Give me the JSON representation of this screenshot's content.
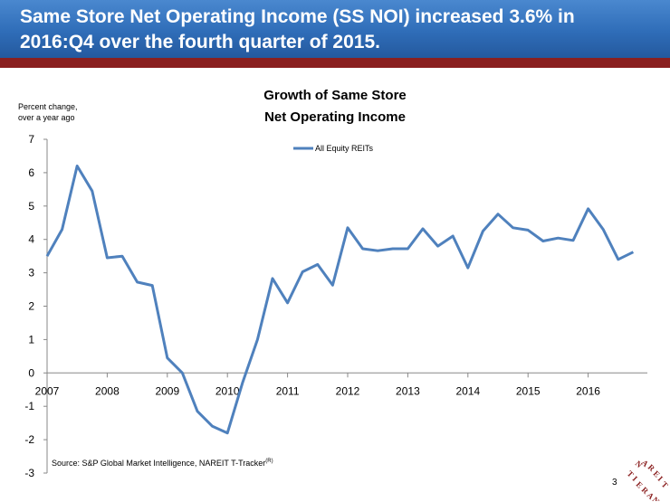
{
  "slide": {
    "title_line1": "Same Store Net Operating Income (SS NOI) increased 3.6% in",
    "title_line2": "2016:Q4 over the fourth quarter of 2015.",
    "source": "Source: S&P Global Market Intelligence, NAREIT T-Tracker",
    "source_mark": "(R)",
    "page_number": "3",
    "logo_text": "NAREIT",
    "colors": {
      "title_bar": "#2f6db8",
      "title_rule": "#8a1f1f",
      "series": "#4f81bd",
      "logo": "#8a1f1f"
    }
  },
  "chart_data": {
    "type": "line",
    "title_line1": "Growth of Same Store",
    "title_line2": "Net Operating Income",
    "ylabel_line1": "Percent change,",
    "ylabel_line2": "over a year ago",
    "xlabel": "",
    "ylim": [
      -3,
      7
    ],
    "yticks": [
      7,
      6,
      5,
      4,
      3,
      2,
      1,
      0,
      -1,
      -2,
      -3
    ],
    "xticks": [
      "2007",
      "2008",
      "2009",
      "2010",
      "2011",
      "2012",
      "2013",
      "2014",
      "2015",
      "2016"
    ],
    "legend_position": "top-center",
    "grid": false,
    "series": [
      {
        "name": "All Equity REITs",
        "values": [
          3.5,
          4.3,
          6.2,
          5.45,
          3.45,
          3.5,
          2.72,
          2.62,
          0.45,
          0.0,
          -1.15,
          -1.6,
          -1.8,
          -0.3,
          1.0,
          2.83,
          2.1,
          3.03,
          3.25,
          2.63,
          4.35,
          3.72,
          3.66,
          3.72,
          3.72,
          4.32,
          3.8,
          4.1,
          3.15,
          4.25,
          4.76,
          4.35,
          4.28,
          3.95,
          4.04,
          3.97,
          4.92,
          4.3,
          3.4,
          3.62
        ]
      }
    ]
  }
}
